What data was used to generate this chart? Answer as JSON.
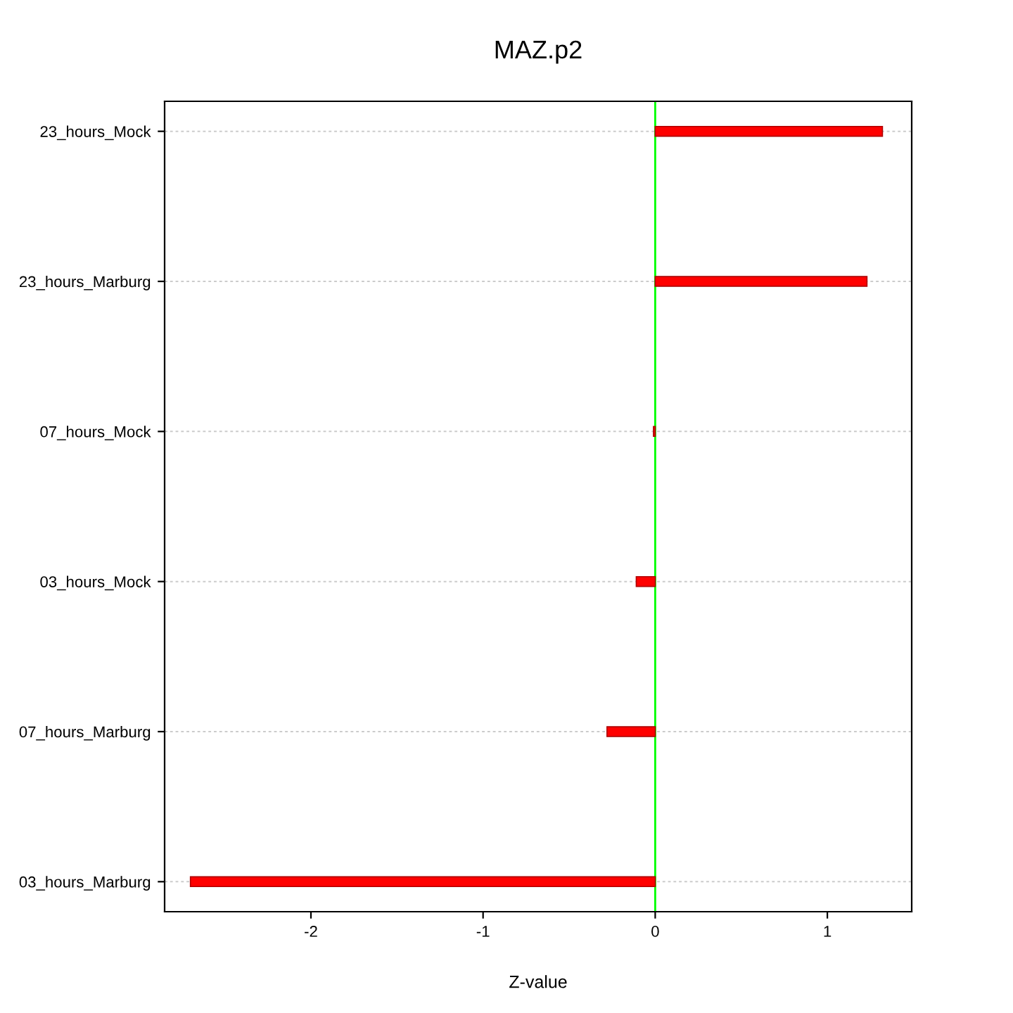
{
  "chart_data": {
    "type": "bar",
    "orientation": "horizontal",
    "title": "MAZ.p2",
    "xlabel": "Z-value",
    "categories": [
      "23_hours_Mock",
      "23_hours_Marburg",
      "07_hours_Mock",
      "03_hours_Mock",
      "07_hours_Marburg",
      "03_hours_Marburg"
    ],
    "values": [
      1.32,
      1.23,
      -0.01,
      -0.11,
      -0.28,
      -2.7
    ],
    "color": "#ff0000",
    "xlim": [
      -2.85,
      1.49
    ],
    "xticks": [
      -2,
      -1,
      0,
      1
    ],
    "grid": "y",
    "ref_lines": [
      {
        "axis": "x",
        "value": 0,
        "color": "#00ff00"
      }
    ]
  }
}
